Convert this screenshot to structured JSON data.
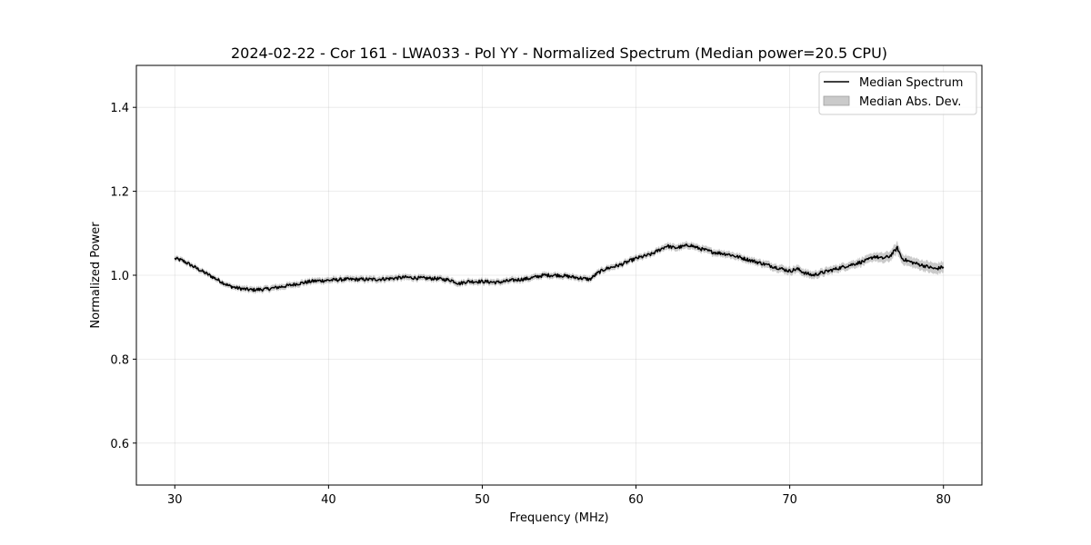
{
  "chart_data": {
    "type": "line",
    "title": "2024-02-22 - Cor 161 - LWA033 - Pol YY - Normalized Spectrum (Median power=20.5 CPU)",
    "xlabel": "Frequency (MHz)",
    "ylabel": "Normalized Power",
    "xlim": [
      27.5,
      82.5
    ],
    "ylim": [
      0.5,
      1.5
    ],
    "xticks": [
      30,
      40,
      50,
      60,
      70,
      80
    ],
    "yticks": [
      0.6,
      0.8,
      1.0,
      1.2,
      1.4
    ],
    "xtick_labels": [
      "30",
      "40",
      "50",
      "60",
      "70",
      "80"
    ],
    "ytick_labels": [
      "0.6",
      "0.8",
      "1.0",
      "1.2",
      "1.4"
    ],
    "grid": true,
    "legend_position": "top-right",
    "legend": [
      {
        "label": "Median Spectrum",
        "kind": "line",
        "color": "#000000"
      },
      {
        "label": "Median Abs. Dev.",
        "kind": "band",
        "color": "#9e9e9e"
      }
    ],
    "series": [
      {
        "name": "Median Spectrum",
        "color": "#000000",
        "x": [
          30,
          30.5,
          31,
          31.5,
          32,
          32.5,
          33,
          33.5,
          34,
          34.5,
          35,
          35.5,
          36,
          36.5,
          37,
          37.5,
          38,
          38.5,
          39,
          39.5,
          40,
          41,
          42,
          43,
          44,
          45,
          46,
          47,
          48,
          48.5,
          49,
          50,
          51,
          52,
          53,
          54,
          55,
          56,
          57,
          57.5,
          58,
          59,
          60,
          61,
          61.5,
          62,
          62.5,
          63,
          63.5,
          64,
          64.5,
          65,
          66,
          67,
          68,
          69,
          70,
          70.5,
          71,
          71.5,
          72,
          72.5,
          73,
          73.5,
          74,
          74.5,
          75,
          75.5,
          76,
          76.5,
          77,
          77.3,
          77.6,
          78,
          78.5,
          79,
          79.5,
          80
        ],
        "y": [
          1.04,
          1.035,
          1.025,
          1.015,
          1.005,
          0.995,
          0.985,
          0.975,
          0.97,
          0.967,
          0.965,
          0.966,
          0.967,
          0.97,
          0.973,
          0.976,
          0.98,
          0.983,
          0.986,
          0.987,
          0.988,
          0.99,
          0.99,
          0.99,
          0.992,
          0.995,
          0.993,
          0.992,
          0.988,
          0.98,
          0.985,
          0.985,
          0.983,
          0.988,
          0.992,
          1.0,
          1.0,
          0.995,
          0.99,
          1.005,
          1.015,
          1.025,
          1.04,
          1.05,
          1.06,
          1.07,
          1.065,
          1.068,
          1.072,
          1.065,
          1.06,
          1.055,
          1.05,
          1.04,
          1.03,
          1.02,
          1.01,
          1.015,
          1.005,
          1.0,
          1.005,
          1.01,
          1.015,
          1.02,
          1.025,
          1.03,
          1.035,
          1.045,
          1.04,
          1.045,
          1.065,
          1.04,
          1.035,
          1.03,
          1.025,
          1.02,
          1.015,
          1.02
        ]
      }
    ],
    "band": {
      "name": "Median Abs. Dev.",
      "color": "#9e9e9e",
      "halfwidth": [
        0.006,
        0.006,
        0.006,
        0.006,
        0.006,
        0.006,
        0.006,
        0.006,
        0.006,
        0.007,
        0.007,
        0.007,
        0.007,
        0.007,
        0.007,
        0.007,
        0.007,
        0.007,
        0.007,
        0.007,
        0.007,
        0.007,
        0.007,
        0.007,
        0.007,
        0.007,
        0.007,
        0.007,
        0.007,
        0.007,
        0.007,
        0.007,
        0.007,
        0.007,
        0.007,
        0.007,
        0.007,
        0.007,
        0.007,
        0.007,
        0.007,
        0.007,
        0.007,
        0.007,
        0.007,
        0.008,
        0.008,
        0.008,
        0.008,
        0.008,
        0.008,
        0.008,
        0.008,
        0.008,
        0.008,
        0.009,
        0.009,
        0.009,
        0.009,
        0.009,
        0.009,
        0.009,
        0.009,
        0.009,
        0.009,
        0.01,
        0.01,
        0.01,
        0.012,
        0.012,
        0.014,
        0.012,
        0.012,
        0.012,
        0.012,
        0.013,
        0.013,
        0.013
      ]
    }
  }
}
